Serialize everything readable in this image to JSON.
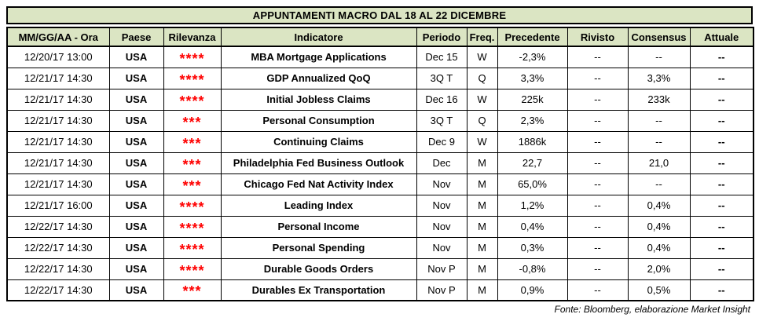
{
  "title": "APPUNTAMENTI MACRO DAL 18 AL 22 DICEMBRE",
  "footer": "Fonte: Bloomberg, elaborazione Market Insight",
  "colors": {
    "header_bg": "#dbe5c3",
    "relevance_stars": "#ff0000",
    "border": "#000000",
    "text": "#000000",
    "row_bg": "#ffffff"
  },
  "table": {
    "headers": [
      "MM/GG/AA - Ora",
      "Paese",
      "Rilevanza",
      "Indicatore",
      "Periodo",
      "Freq.",
      "Precedente",
      "Rivisto",
      "Consensus",
      "Attuale"
    ],
    "column_keys": [
      "datetime",
      "country",
      "relevance",
      "indicator",
      "period",
      "freq",
      "previous",
      "revised",
      "consensus",
      "actual"
    ],
    "rows": [
      {
        "datetime": "12/20/17 13:00",
        "country": "USA",
        "relevance": "****",
        "indicator": "MBA Mortgage Applications",
        "period": "Dec 15",
        "freq": "W",
        "previous": "-2,3%",
        "revised": "--",
        "consensus": "--",
        "actual": "--"
      },
      {
        "datetime": "12/21/17 14:30",
        "country": "USA",
        "relevance": "****",
        "indicator": "GDP Annualized QoQ",
        "period": "3Q T",
        "freq": "Q",
        "previous": "3,3%",
        "revised": "--",
        "consensus": "3,3%",
        "actual": "--"
      },
      {
        "datetime": "12/21/17 14:30",
        "country": "USA",
        "relevance": "****",
        "indicator": "Initial Jobless Claims",
        "period": "Dec 16",
        "freq": "W",
        "previous": "225k",
        "revised": "--",
        "consensus": "233k",
        "actual": "--"
      },
      {
        "datetime": "12/21/17 14:30",
        "country": "USA",
        "relevance": "***",
        "indicator": "Personal Consumption",
        "period": "3Q T",
        "freq": "Q",
        "previous": "2,3%",
        "revised": "--",
        "consensus": "--",
        "actual": "--"
      },
      {
        "datetime": "12/21/17 14:30",
        "country": "USA",
        "relevance": "***",
        "indicator": "Continuing Claims",
        "period": "Dec 9",
        "freq": "W",
        "previous": "1886k",
        "revised": "--",
        "consensus": "--",
        "actual": "--"
      },
      {
        "datetime": "12/21/17 14:30",
        "country": "USA",
        "relevance": "***",
        "indicator": "Philadelphia Fed Business Outlook",
        "period": "Dec",
        "freq": "M",
        "previous": "22,7",
        "revised": "--",
        "consensus": "21,0",
        "actual": "--"
      },
      {
        "datetime": "12/21/17 14:30",
        "country": "USA",
        "relevance": "***",
        "indicator": "Chicago Fed Nat Activity Index",
        "period": "Nov",
        "freq": "M",
        "previous": "65,0%",
        "revised": "--",
        "consensus": "--",
        "actual": "--"
      },
      {
        "datetime": "12/21/17 16:00",
        "country": "USA",
        "relevance": "****",
        "indicator": "Leading Index",
        "period": "Nov",
        "freq": "M",
        "previous": "1,2%",
        "revised": "--",
        "consensus": "0,4%",
        "actual": "--"
      },
      {
        "datetime": "12/22/17 14:30",
        "country": "USA",
        "relevance": "****",
        "indicator": "Personal Income",
        "period": "Nov",
        "freq": "M",
        "previous": "0,4%",
        "revised": "--",
        "consensus": "0,4%",
        "actual": "--"
      },
      {
        "datetime": "12/22/17 14:30",
        "country": "USA",
        "relevance": "****",
        "indicator": "Personal Spending",
        "period": "Nov",
        "freq": "M",
        "previous": "0,3%",
        "revised": "--",
        "consensus": "0,4%",
        "actual": "--"
      },
      {
        "datetime": "12/22/17 14:30",
        "country": "USA",
        "relevance": "****",
        "indicator": "Durable Goods Orders",
        "period": "Nov P",
        "freq": "M",
        "previous": "-0,8%",
        "revised": "--",
        "consensus": "2,0%",
        "actual": "--"
      },
      {
        "datetime": "12/22/17 14:30",
        "country": "USA",
        "relevance": "***",
        "indicator": "Durables Ex Transportation",
        "period": "Nov P",
        "freq": "M",
        "previous": "0,9%",
        "revised": "--",
        "consensus": "0,5%",
        "actual": "--"
      }
    ]
  }
}
